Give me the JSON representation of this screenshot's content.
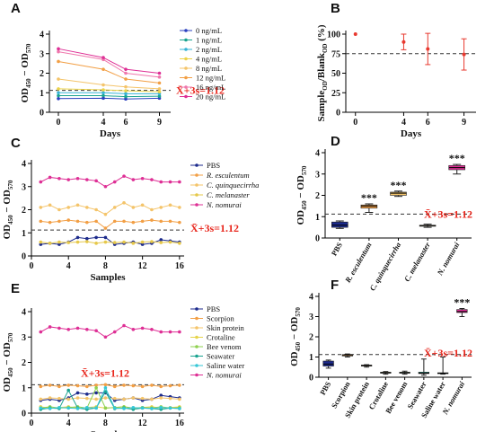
{
  "chart_data": [
    {
      "panel": "A",
      "type": "line",
      "y_label": [
        "OD",
        "450",
        " − OD",
        "570"
      ],
      "x_label": "Days",
      "x": [
        0,
        4,
        6,
        9
      ],
      "xlim": [
        -0.8,
        10
      ],
      "xticks": [
        0,
        4,
        6,
        9
      ],
      "ylim": [
        0,
        4
      ],
      "yticks": [
        0,
        1,
        2,
        3,
        4
      ],
      "threshold": 1.12,
      "threshold_label": "X̄+3s=1.12",
      "series": [
        {
          "name": "0 ng/mL",
          "color": "#2a3fbf",
          "values": [
            0.7,
            0.72,
            0.68,
            0.72
          ]
        },
        {
          "name": "1 ng/mL",
          "color": "#19a38f",
          "values": [
            0.85,
            0.85,
            0.8,
            0.82
          ]
        },
        {
          "name": "2 ng/mL",
          "color": "#36b3d6",
          "values": [
            1.0,
            1.0,
            0.95,
            0.95
          ]
        },
        {
          "name": "4 ng/mL",
          "color": "#ecd34a",
          "values": [
            1.2,
            1.15,
            1.1,
            1.05
          ]
        },
        {
          "name": "8 ng/mL",
          "color": "#f4c46a",
          "values": [
            1.7,
            1.4,
            1.3,
            1.2
          ]
        },
        {
          "name": "12 ng/mL",
          "color": "#f29f45",
          "values": [
            2.6,
            2.2,
            1.7,
            1.5
          ]
        },
        {
          "name": "16 ng/mL",
          "color": "#ef78ad",
          "values": [
            3.1,
            2.7,
            2.0,
            1.8
          ]
        },
        {
          "name": "20 ng/mL",
          "color": "#de2f95",
          "values": [
            3.25,
            2.8,
            2.2,
            2.0
          ]
        }
      ]
    },
    {
      "panel": "B",
      "type": "scatter",
      "y_label": [
        "Sample",
        "OD",
        "/Blank",
        "OD",
        " (%)"
      ],
      "x_label": "Days",
      "x": [
        0,
        4,
        6,
        9
      ],
      "values": [
        100,
        90,
        81,
        74
      ],
      "errors": [
        null,
        10,
        20,
        20
      ],
      "color": "#e8392f",
      "xlim": [
        -0.8,
        10
      ],
      "xticks": [
        0,
        4,
        6,
        9
      ],
      "ylim": [
        0,
        100
      ],
      "yticks": [
        0,
        25,
        50,
        75,
        100
      ],
      "threshold": 75
    },
    {
      "panel": "C",
      "type": "line",
      "y_label": [
        "OD",
        "450",
        " − OD",
        "570"
      ],
      "x_label": "Samples",
      "x": [
        1,
        2,
        3,
        4,
        5,
        6,
        7,
        8,
        9,
        10,
        11,
        12,
        13,
        14,
        15,
        16
      ],
      "xlim": [
        0,
        16.5
      ],
      "xticks": [
        0,
        4,
        8,
        12,
        16
      ],
      "ylim": [
        0,
        4
      ],
      "yticks": [
        0,
        1,
        2,
        3,
        4
      ],
      "threshold": 1.12,
      "threshold_label": "X̄+3s=1.12",
      "series": [
        {
          "name": "PBS",
          "color": "#1c2a8c",
          "italic": false,
          "values": [
            0.5,
            0.55,
            0.5,
            0.6,
            0.8,
            0.75,
            0.8,
            0.8,
            0.5,
            0.55,
            0.6,
            0.5,
            0.55,
            0.7,
            0.65,
            0.6
          ]
        },
        {
          "name": "R. esculentum",
          "color": "#f29f45",
          "italic": true,
          "values": [
            1.5,
            1.45,
            1.5,
            1.55,
            1.5,
            1.45,
            1.5,
            1.2,
            1.5,
            1.5,
            1.45,
            1.5,
            1.55,
            1.5,
            1.5,
            1.45
          ]
        },
        {
          "name": "C. quinquecirrha",
          "color": "#f4c46a",
          "italic": true,
          "values": [
            2.1,
            2.2,
            2.0,
            2.1,
            2.2,
            2.1,
            2.0,
            1.8,
            2.1,
            2.3,
            2.1,
            2.2,
            2.0,
            2.1,
            2.2,
            2.1
          ]
        },
        {
          "name": "C. melanaster",
          "color": "#e6c84a",
          "italic": true,
          "values": [
            0.6,
            0.55,
            0.6,
            0.58,
            0.6,
            0.62,
            0.55,
            0.6,
            0.58,
            0.6,
            0.55,
            0.6,
            0.62,
            0.58,
            0.6,
            0.55
          ]
        },
        {
          "name": "N. nomurai",
          "color": "#de2f95",
          "italic": true,
          "values": [
            3.2,
            3.4,
            3.35,
            3.3,
            3.35,
            3.3,
            3.25,
            3.0,
            3.2,
            3.45,
            3.3,
            3.35,
            3.3,
            3.2,
            3.2,
            3.2
          ]
        }
      ]
    },
    {
      "panel": "D",
      "type": "box",
      "y_label": [
        "OD",
        "450",
        " − OD",
        "570"
      ],
      "categories": [
        "PBS",
        "R. esculentum",
        "C. quinquecirrha",
        "C. melanaster",
        "N. nomurai"
      ],
      "category_italic": [
        false,
        true,
        true,
        true,
        true
      ],
      "colors": [
        "#1c2a8c",
        "#f29f45",
        "#f4c46a",
        "#e6c84a",
        "#de2f95"
      ],
      "boxes": [
        {
          "min": 0.45,
          "q1": 0.5,
          "median": 0.6,
          "q3": 0.75,
          "max": 0.8
        },
        {
          "min": 1.2,
          "q1": 1.4,
          "median": 1.5,
          "q3": 1.55,
          "max": 1.6
        },
        {
          "min": 1.95,
          "q1": 2.0,
          "median": 2.1,
          "q3": 2.15,
          "max": 2.2
        },
        {
          "min": 0.5,
          "q1": 0.55,
          "median": 0.58,
          "q3": 0.6,
          "max": 0.65
        },
        {
          "min": 3.0,
          "q1": 3.2,
          "median": 3.3,
          "q3": 3.4,
          "max": 3.45
        }
      ],
      "significance": [
        null,
        "***",
        "***",
        null,
        "***"
      ],
      "ylim": [
        0,
        4
      ],
      "yticks": [
        0,
        1,
        2,
        3,
        4
      ],
      "threshold": 1.12,
      "threshold_label": "X̄+3s=1.12"
    },
    {
      "panel": "E",
      "type": "line",
      "y_label": [
        "OD",
        "450",
        " − OD",
        "570"
      ],
      "x_label": "Samples",
      "x": [
        1,
        2,
        3,
        4,
        5,
        6,
        7,
        8,
        9,
        10,
        11,
        12,
        13,
        14,
        15,
        16
      ],
      "xlim": [
        0,
        16.5
      ],
      "xticks": [
        0,
        4,
        8,
        12,
        16
      ],
      "ylim": [
        0,
        4
      ],
      "yticks": [
        0,
        1,
        2,
        3,
        4
      ],
      "threshold": 1.12,
      "threshold_label": "X̄+3s=1.12",
      "series": [
        {
          "name": "PBS",
          "color": "#1c2a8c",
          "italic": false,
          "values": [
            0.5,
            0.55,
            0.5,
            0.6,
            0.8,
            0.75,
            0.8,
            0.8,
            0.5,
            0.55,
            0.6,
            0.5,
            0.55,
            0.7,
            0.65,
            0.6
          ]
        },
        {
          "name": "Scorpion",
          "color": "#f29f45",
          "italic": false,
          "values": [
            1.05,
            1.1,
            1.05,
            1.1,
            1.08,
            1.05,
            1.1,
            1.12,
            1.05,
            1.1,
            1.08,
            1.05,
            1.1,
            1.05,
            1.08,
            1.1
          ]
        },
        {
          "name": "Skin protein",
          "color": "#f4c46a",
          "italic": false,
          "values": [
            0.55,
            0.6,
            0.58,
            0.55,
            0.6,
            0.58,
            0.55,
            0.6,
            0.58,
            0.55,
            0.6,
            0.58,
            0.55,
            0.6,
            0.58,
            0.55
          ]
        },
        {
          "name": "Crotaline",
          "color": "#e6d44a",
          "italic": false,
          "values": [
            0.25,
            0.2,
            0.22,
            0.25,
            0.2,
            0.22,
            0.25,
            0.2,
            0.22,
            0.25,
            0.2,
            0.22,
            0.25,
            0.2,
            0.22,
            0.25
          ]
        },
        {
          "name": "Bee venom",
          "color": "#8fd14f",
          "italic": false,
          "values": [
            0.2,
            0.25,
            0.2,
            0.22,
            0.25,
            0.2,
            1.0,
            0.2,
            0.22,
            0.25,
            0.2,
            0.22,
            0.2,
            0.25,
            0.2,
            0.22
          ]
        },
        {
          "name": "Seawater",
          "color": "#19a38f",
          "italic": false,
          "values": [
            0.15,
            0.2,
            0.18,
            0.9,
            0.2,
            0.15,
            0.2,
            0.85,
            0.18,
            0.2,
            0.15,
            0.2,
            0.18,
            0.15,
            0.2,
            0.18
          ]
        },
        {
          "name": "Saline water",
          "color": "#36c7d6",
          "italic": false,
          "values": [
            0.2,
            0.18,
            0.22,
            0.2,
            0.18,
            0.22,
            0.2,
            1.0,
            0.2,
            0.18,
            0.22,
            0.2,
            0.18,
            0.22,
            0.2,
            0.18
          ]
        },
        {
          "name": "N. nomurai",
          "color": "#de2f95",
          "italic": true,
          "values": [
            3.2,
            3.4,
            3.35,
            3.3,
            3.35,
            3.3,
            3.25,
            3.0,
            3.2,
            3.45,
            3.3,
            3.35,
            3.3,
            3.2,
            3.2,
            3.2
          ]
        }
      ]
    },
    {
      "panel": "F",
      "type": "box",
      "y_label": [
        "OD",
        "450",
        " − OD",
        "570"
      ],
      "categories": [
        "PBS",
        "Scorpion",
        "Skin protein",
        "Crotaline",
        "Bee venom",
        "Seawater",
        "Saline water",
        "N. nomurai"
      ],
      "category_italic": [
        false,
        false,
        false,
        false,
        false,
        false,
        false,
        true
      ],
      "colors": [
        "#1c2a8c",
        "#f29f45",
        "#f4c46a",
        "#e6d44a",
        "#8fd14f",
        "#19a38f",
        "#36c7d6",
        "#de2f95"
      ],
      "boxes": [
        {
          "min": 0.45,
          "q1": 0.55,
          "median": 0.65,
          "q3": 0.8,
          "max": 0.85
        },
        {
          "min": 1.0,
          "q1": 1.05,
          "median": 1.1,
          "q3": 1.12,
          "max": 1.15
        },
        {
          "min": 0.5,
          "q1": 0.55,
          "median": 0.58,
          "q3": 0.6,
          "max": 0.62
        },
        {
          "min": 0.15,
          "q1": 0.2,
          "median": 0.22,
          "q3": 0.25,
          "max": 0.28
        },
        {
          "min": 0.15,
          "q1": 0.2,
          "median": 0.22,
          "q3": 0.25,
          "max": 0.3
        },
        {
          "min": 0.1,
          "q1": 0.18,
          "median": 0.2,
          "q3": 0.25,
          "max": 0.9
        },
        {
          "min": 0.15,
          "q1": 0.18,
          "median": 0.2,
          "q3": 0.22,
          "max": 1.0
        },
        {
          "min": 3.0,
          "q1": 3.2,
          "median": 3.25,
          "q3": 3.35,
          "max": 3.4
        }
      ],
      "significance": [
        null,
        null,
        null,
        null,
        null,
        null,
        null,
        "***"
      ],
      "ylim": [
        0,
        4
      ],
      "yticks": [
        0,
        1,
        2,
        3,
        4
      ],
      "threshold": 1.12,
      "threshold_label": "X̄+3s=1.12"
    }
  ]
}
